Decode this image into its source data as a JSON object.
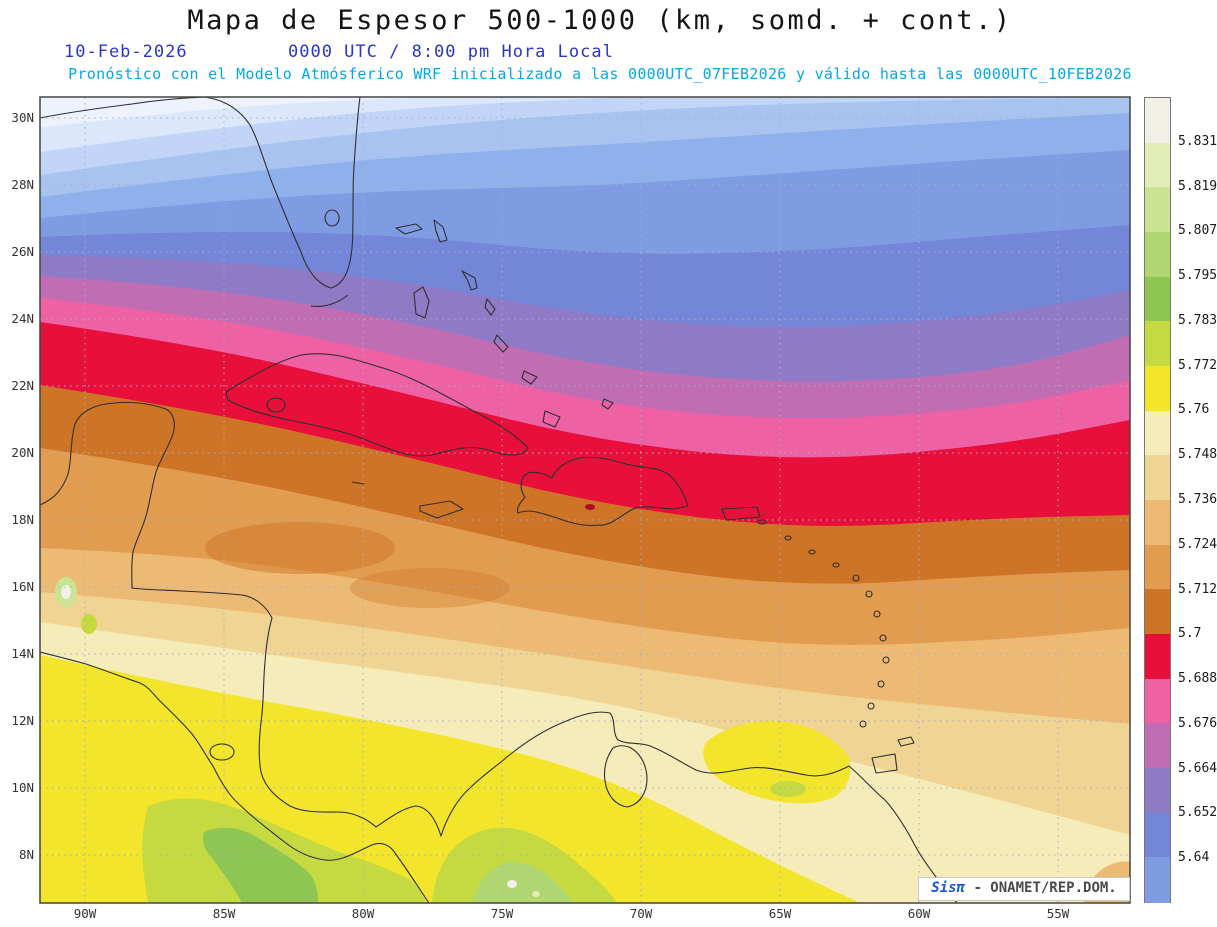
{
  "header": {
    "title": "Mapa de Espesor 500-1000 (km, somd. + cont.)",
    "date": "10-Feb-2026",
    "time": "0000 UTC / 8:00 pm Hora Local",
    "forecast": "Pronóstico con el Modelo Atmósferico WRF inicializado a las 0000UTC_07FEB2026 y válido hasta las  0000UTC_10FEB2026",
    "title_color": "#141414",
    "datetime_color": "#2a35c8",
    "forecast_color": "#00a9e8"
  },
  "map": {
    "lat_labels": [
      "30N",
      "28N",
      "26N",
      "24N",
      "22N",
      "20N",
      "18N",
      "16N",
      "14N",
      "12N",
      "10N",
      "8N"
    ],
    "lon_labels": [
      "90W",
      "85W",
      "80W",
      "75W",
      "70W",
      "65W",
      "60W",
      "55W"
    ],
    "grid_color": "#a3aecb",
    "coast_color": "#2f2f2f",
    "offscale_blues_north": [
      "#edf2fd",
      "#dbe7fa",
      "#c2d5f6",
      "#a8c3f0",
      "#8fb0ea"
    ]
  },
  "colorbar": {
    "labels": [
      "5.831",
      "5.819",
      "5.807",
      "5.795",
      "5.783",
      "5.772",
      "5.76",
      "5.748",
      "5.736",
      "5.724",
      "5.712",
      "5.7",
      "5.688",
      "5.676",
      "5.664",
      "5.652",
      "5.64"
    ],
    "segment_colors_top_to_bottom": [
      "#f2f0e6",
      "#e2eeb5",
      "#cbe494",
      "#afd671",
      "#8fc553",
      "#c5da40",
      "#f3e52c",
      "#f6ecba",
      "#f0d494",
      "#ecba72",
      "#e29c50",
      "#cd7426",
      "#e8103a",
      "#ee61a4",
      "#c06db4",
      "#8f7ac6",
      "#7386d8",
      "#7f9ce2"
    ]
  },
  "attribution": {
    "prefix": "Sis",
    "pi": "π",
    "separator": "- ",
    "org": "ONAMET/REP.DOM.",
    "logo_color": "#1558d8",
    "org_color": "#4a4a4a"
  }
}
